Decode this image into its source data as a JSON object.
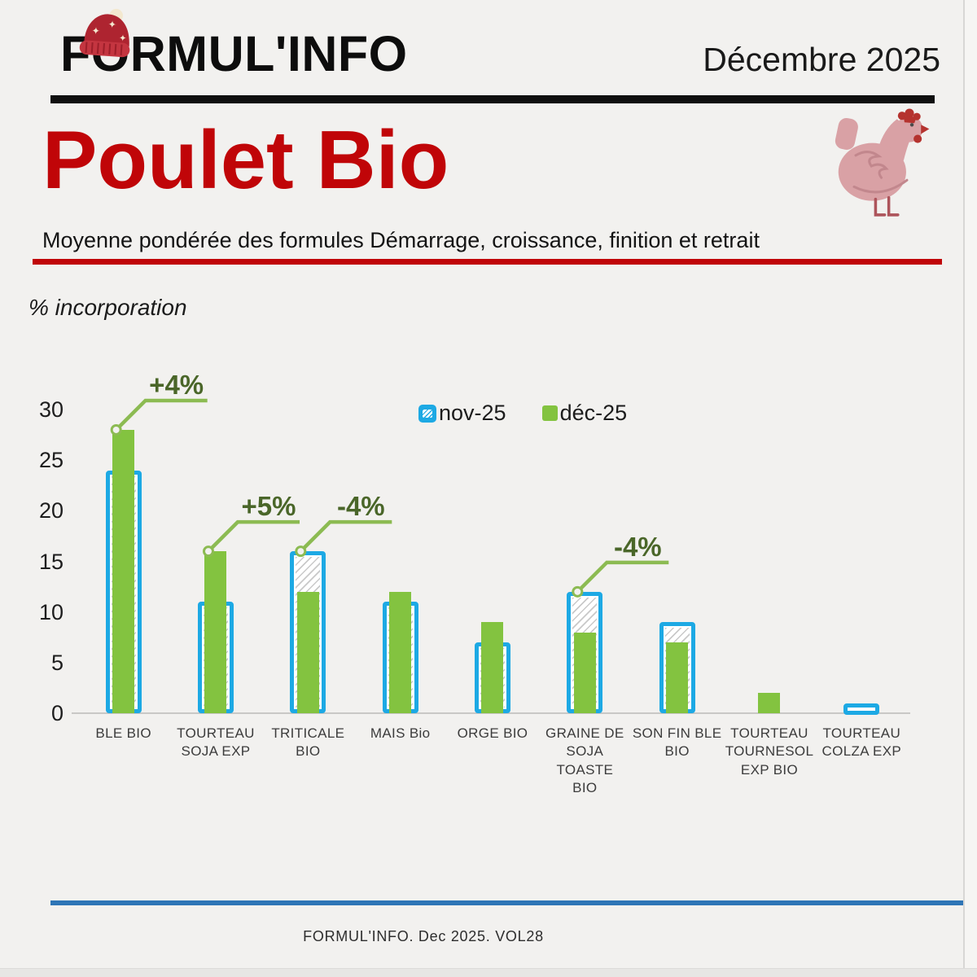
{
  "header": {
    "brand": "FORMUL'INFO",
    "issue_date": "Décembre 2025"
  },
  "title_block": {
    "title": "Poulet Bio",
    "subtitle": "Moyenne pondérée des formules Démarrage, croissance, finition et retrait"
  },
  "chart_data": {
    "type": "bar",
    "title": "% incorporation",
    "xlabel": "",
    "ylabel": "% incorporation",
    "ylim": [
      0,
      30
    ],
    "yticks": [
      0,
      5,
      10,
      15,
      20,
      25,
      30
    ],
    "grid": false,
    "legend_position": "top-center",
    "categories": [
      "BLE BIO",
      "TOURTEAU\nSOJA EXP",
      "TRITICALE BIO",
      "MAIS Bio",
      "ORGE BIO",
      "GRAINE DE\nSOJA TOASTE\nBIO",
      "SON FIN BLE\nBIO",
      "TOURTEAU\nTOURNESOL\nEXP BIO",
      "TOURTEAU\nCOLZA EXP"
    ],
    "series": [
      {
        "name": "nov-25",
        "style": "hatched_outline",
        "color": "#1da9e4",
        "values": [
          24,
          11,
          16,
          11,
          7,
          12,
          9,
          0,
          1
        ]
      },
      {
        "name": "déc-25",
        "style": "solid",
        "color": "#83c340",
        "values": [
          28,
          16,
          12,
          12,
          9,
          8,
          7,
          2,
          0
        ]
      }
    ],
    "annotations": [
      {
        "category_index": 0,
        "label": "+4%"
      },
      {
        "category_index": 1,
        "label": "+5%"
      },
      {
        "category_index": 2,
        "label": "-4%"
      },
      {
        "category_index": 5,
        "label": "-4%"
      }
    ]
  },
  "footer": {
    "credit": "FORMUL'INFO. Dec 2025. VOL28"
  },
  "colors": {
    "accent_red": "#c00508",
    "bar_blue": "#1da9e4",
    "bar_green": "#83c340",
    "annotation_text_green": "#4a6629",
    "callout_line_green": "#8cbb52",
    "footer_rule_blue": "#2e75b6",
    "background": "#f2f1ef"
  }
}
